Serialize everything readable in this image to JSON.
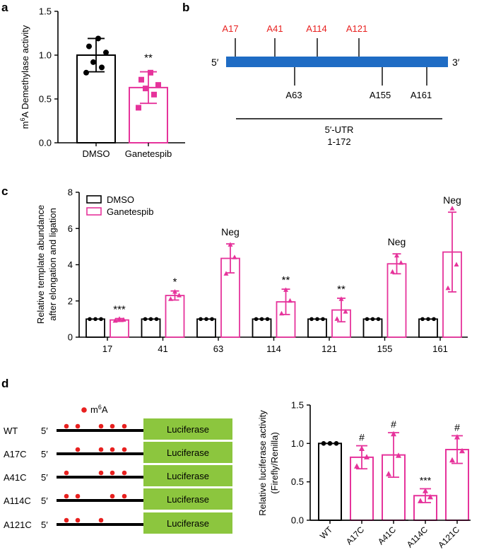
{
  "colors": {
    "control": "#000000",
    "treat": "#e6339b",
    "red_site": "#e8201f",
    "utr_bar": "#1f6cc4",
    "luc_box": "#8cc63e"
  },
  "panel_labels": {
    "a": "a",
    "b": "b",
    "c": "c",
    "d": "d"
  },
  "chart_data": [
    {
      "id": "a",
      "type": "bar",
      "categories": [
        "DMSO",
        "Ganetespib"
      ],
      "values": [
        1.0,
        0.63
      ],
      "error": [
        0.19,
        0.18
      ],
      "points": [
        [
          0.8,
          0.86,
          0.92,
          1.03,
          1.1,
          1.19
        ],
        [
          0.4,
          0.55,
          0.62,
          0.66,
          0.72,
          0.8
        ]
      ],
      "significance": [
        "",
        "**"
      ],
      "ylabel_pre": "m",
      "ylabel_sup": "6",
      "ylabel_post": "A Demethylase activity",
      "ylim": [
        0,
        1.5
      ],
      "yticks": [
        "0.0",
        "0.5",
        "1.0",
        "1.5"
      ],
      "ytick_values": [
        0,
        0.5,
        1.0,
        1.5
      ]
    },
    {
      "id": "c",
      "type": "bar",
      "categories": [
        "17",
        "41",
        "63",
        "114",
        "121",
        "155",
        "161"
      ],
      "series": [
        {
          "name": "DMSO",
          "values": [
            1,
            1,
            1,
            1,
            1,
            1,
            1
          ],
          "error": [
            0,
            0,
            0,
            0,
            0,
            0,
            0
          ]
        },
        {
          "name": "Ganetespib",
          "values": [
            0.95,
            2.3,
            4.35,
            1.95,
            1.5,
            4.05,
            4.7
          ],
          "error": [
            0.08,
            0.25,
            0.8,
            0.7,
            0.65,
            0.55,
            2.2
          ],
          "points": [
            [
              0.9,
              0.95,
              1.0
            ],
            [
              2.1,
              2.3,
              2.5
            ],
            [
              3.5,
              4.4,
              5.1
            ],
            [
              1.3,
              2.0,
              2.6
            ],
            [
              1.0,
              1.4,
              2.1
            ],
            [
              3.6,
              4.1,
              4.5
            ],
            [
              2.7,
              4.0,
              7.1
            ]
          ]
        }
      ],
      "annotations": [
        "***",
        "*",
        "Neg",
        "**",
        "**",
        "Neg",
        "Neg"
      ],
      "ylabel_line1": "Relative template abundance",
      "ylabel_line2": "after elongation and ligation",
      "legend": [
        "DMSO",
        "Ganetespib"
      ],
      "ylim": [
        0,
        8
      ],
      "yticks": [
        "0",
        "2",
        "4",
        "6",
        "8"
      ],
      "ytick_values": [
        0,
        2,
        4,
        6,
        8
      ]
    },
    {
      "id": "d",
      "type": "bar",
      "categories": [
        "WT",
        "A17C",
        "A41C",
        "A114C",
        "A121C"
      ],
      "values": [
        1.0,
        0.82,
        0.85,
        0.32,
        0.92
      ],
      "error": [
        0,
        0.15,
        0.29,
        0.09,
        0.18
      ],
      "points": [
        [
          1.0,
          1.0,
          1.0
        ],
        [
          0.7,
          0.82,
          0.93
        ],
        [
          0.6,
          0.84,
          1.12
        ],
        [
          0.25,
          0.3,
          0.38
        ],
        [
          0.78,
          0.9,
          1.08
        ]
      ],
      "significance": [
        "",
        "#",
        "#",
        "***",
        "#"
      ],
      "ylabel_line1": "Relative luciferase activity",
      "ylabel_line2": "(Firefly/Renilla)",
      "ylim": [
        0,
        1.5
      ],
      "yticks": [
        "0.0",
        "0.5",
        "1.0",
        "1.5"
      ],
      "ytick_values": [
        0,
        0.5,
        1.0,
        1.5
      ]
    }
  ],
  "utr_map": {
    "five_prime": "5′",
    "three_prime": "3′",
    "top_sites": [
      "A17",
      "A41",
      "A114",
      "A121"
    ],
    "bottom_sites": [
      "A63",
      "A155",
      "A161"
    ],
    "utr_label": "5′-UTR",
    "utr_range": "1-172"
  },
  "constructs": {
    "legend_label_pre": "m",
    "legend_label_sup": "6",
    "legend_label_post": "A",
    "five_prime": "5′",
    "box_label": "Luciferase",
    "rows": [
      {
        "name": "WT",
        "dots": 5
      },
      {
        "name": "A17C",
        "dots": 4
      },
      {
        "name": "A41C",
        "dots": 4
      },
      {
        "name": "A114C",
        "dots": 4
      },
      {
        "name": "A121C",
        "dots": 3
      }
    ]
  }
}
